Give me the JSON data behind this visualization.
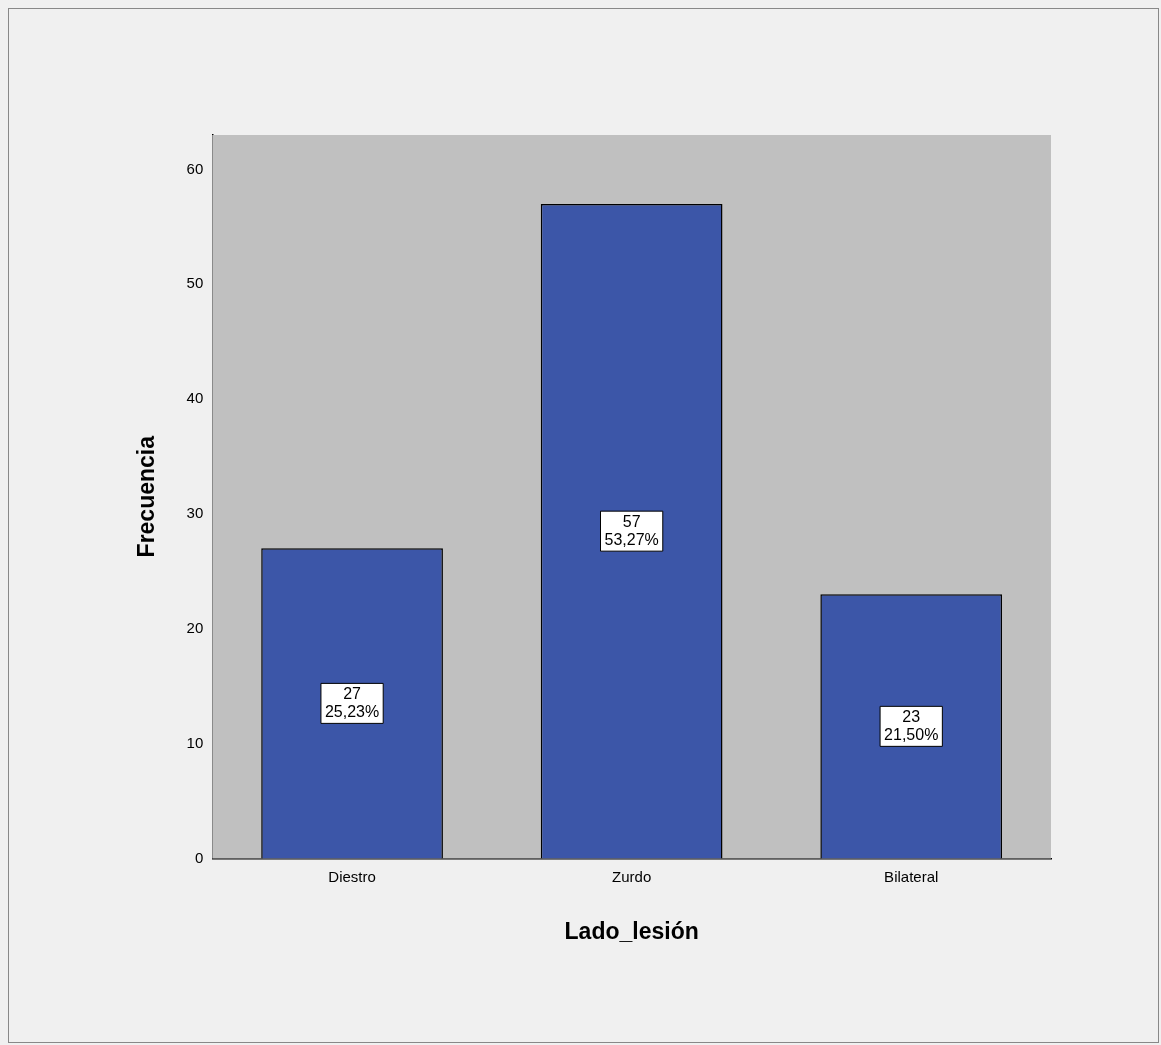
{
  "chart_data": {
    "type": "bar",
    "xlabel": "Lado_lesión",
    "ylabel": "Frecuencia",
    "categories": [
      "Diestro",
      "Zurdo",
      "Bilateral"
    ],
    "values": [
      27,
      57,
      23
    ],
    "color": "#3c56a8",
    "value_labels": [
      "27\n25,23%",
      "57\n53,27%",
      "23\n21,50%"
    ],
    "ylim": [
      0,
      63
    ],
    "yticks": [
      0,
      10,
      20,
      30,
      40,
      50,
      60
    ],
    "grid": false,
    "legend": false
  }
}
